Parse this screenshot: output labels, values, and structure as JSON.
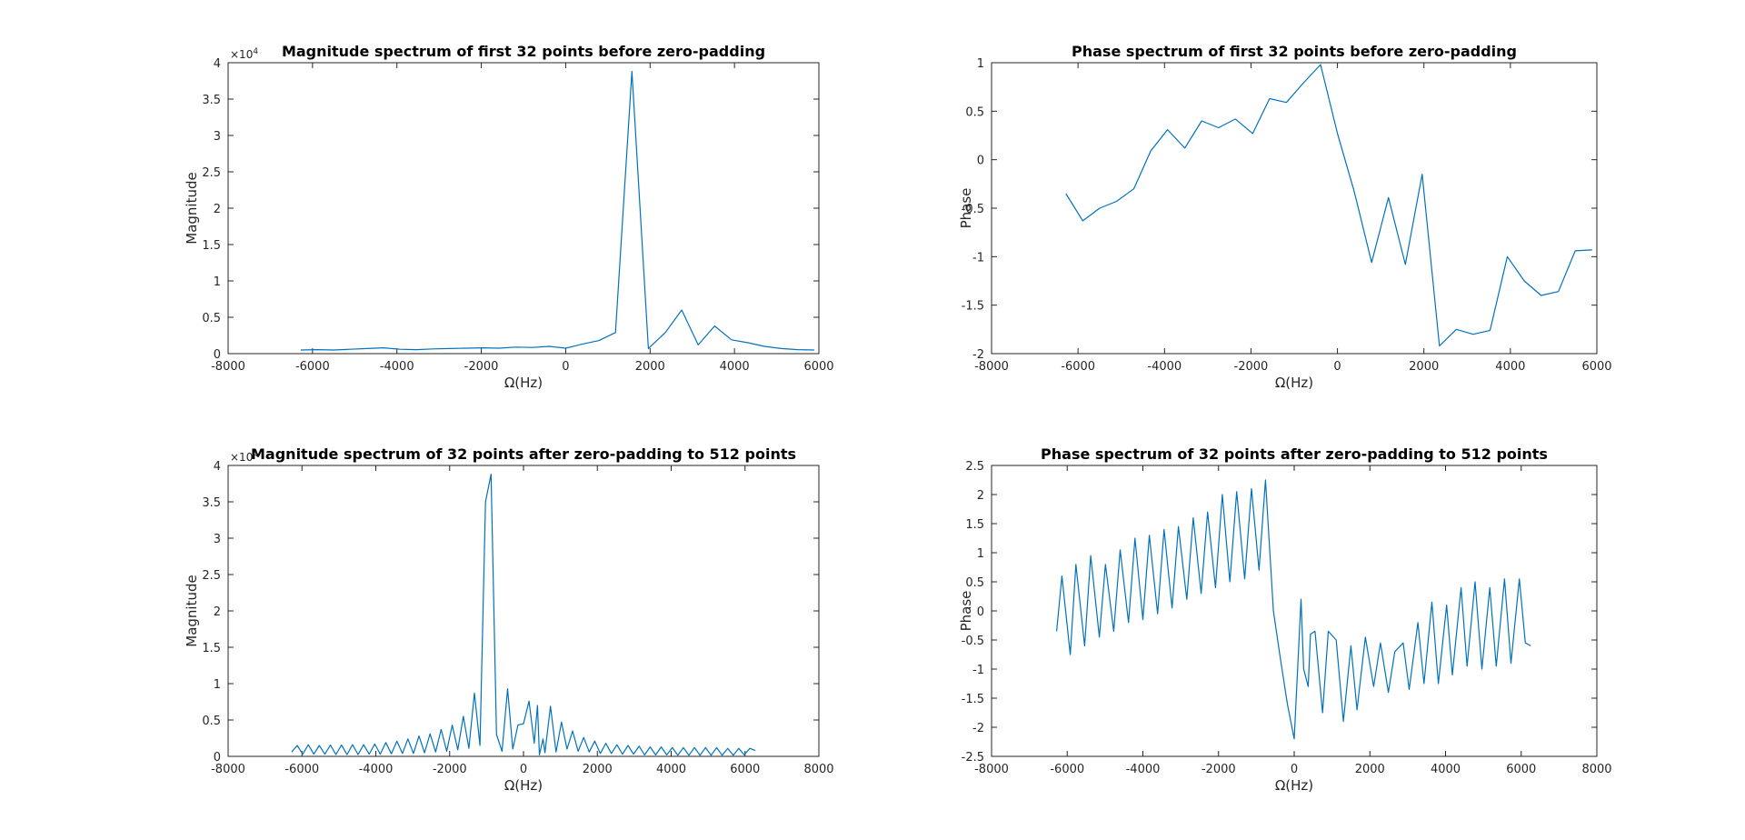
{
  "figure": {
    "background": "#ffffff",
    "line_color": "#0072BD",
    "axis_color": "#262626"
  },
  "chart_data": [
    {
      "type": "line",
      "title": "Magnitude spectrum of first 32 points before zero-padding",
      "xlabel": "Ω(Hz)",
      "ylabel": "Magnitude",
      "xlim": [
        -8000,
        6000
      ],
      "ylim": [
        0,
        40000
      ],
      "xticks": [
        -8000,
        -6000,
        -4000,
        -2000,
        0,
        2000,
        4000,
        6000
      ],
      "xtick_labels": [
        "-8000",
        "-6000",
        "-4000",
        "-2000",
        "0",
        "2000",
        "4000",
        "6000"
      ],
      "yticks": [
        0,
        5000,
        10000,
        15000,
        20000,
        25000,
        30000,
        35000,
        40000
      ],
      "ytick_labels": [
        "0",
        "0.5",
        "1",
        "1.5",
        "2",
        "2.5",
        "3",
        "3.5",
        "4"
      ],
      "y_multiplier": {
        "base": "×10",
        "exp": "4"
      },
      "grid": false,
      "series": [
        {
          "x": [
            -6280,
            -5890,
            -5500,
            -5110,
            -4710,
            -4320,
            -3930,
            -3530,
            -3140,
            -2750,
            -2360,
            -1960,
            -1570,
            -1180,
            -790,
            -390,
            0,
            390,
            790,
            1180,
            1570,
            1960,
            2360,
            2750,
            3140,
            3530,
            3930,
            4320,
            4710,
            5110,
            5500,
            5890
          ],
          "y": [
            500,
            550,
            500,
            600,
            700,
            800,
            600,
            550,
            650,
            700,
            750,
            800,
            750,
            900,
            850,
            1000,
            750,
            1300,
            1800,
            2900,
            38800,
            700,
            2900,
            6000,
            1200,
            3800,
            1900,
            1500,
            1000,
            700,
            550,
            500
          ]
        }
      ]
    },
    {
      "type": "line",
      "title": "Phase spectrum of first 32 points before zero-padding",
      "xlabel": "Ω(Hz)",
      "ylabel": "Phase",
      "xlim": [
        -8000,
        6000
      ],
      "ylim": [
        -2,
        1
      ],
      "xticks": [
        -8000,
        -6000,
        -4000,
        -2000,
        0,
        2000,
        4000,
        6000
      ],
      "xtick_labels": [
        "-8000",
        "-6000",
        "-4000",
        "-2000",
        "0",
        "2000",
        "4000",
        "6000"
      ],
      "yticks": [
        -2,
        -1.5,
        -1,
        -0.5,
        0,
        0.5,
        1
      ],
      "ytick_labels": [
        "-2",
        "-1.5",
        "-1",
        "-0.5",
        "0",
        "0.5",
        "1"
      ],
      "grid": false,
      "series": [
        {
          "x": [
            -6280,
            -5890,
            -5500,
            -5110,
            -4710,
            -4320,
            -3930,
            -3530,
            -3140,
            -2750,
            -2360,
            -1960,
            -1570,
            -1180,
            -790,
            -390,
            0,
            390,
            790,
            1180,
            1570,
            1960,
            2360,
            2750,
            3140,
            3530,
            3930,
            4320,
            4710,
            5110,
            5500,
            5890
          ],
          "y": [
            -0.35,
            -0.63,
            -0.5,
            -0.43,
            -0.3,
            0.09,
            0.31,
            0.12,
            0.4,
            0.33,
            0.42,
            0.27,
            0.63,
            0.59,
            0.79,
            0.98,
            0.27,
            -0.33,
            -1.06,
            -0.39,
            -1.08,
            -0.15,
            -1.92,
            -1.75,
            -1.8,
            -1.76,
            -1.0,
            -1.25,
            -1.4,
            -1.36,
            -0.94,
            -0.93
          ]
        }
      ]
    },
    {
      "type": "line",
      "title": "Magnitude spectrum of 32 points after zero-padding to 512 points",
      "xlabel": "Ω(Hz)",
      "ylabel": "Magnitude",
      "xlim": [
        -8000,
        8000
      ],
      "ylim": [
        0,
        40000
      ],
      "xticks": [
        -8000,
        -6000,
        -4000,
        -2000,
        0,
        2000,
        4000,
        6000,
        8000
      ],
      "xtick_labels": [
        "-8000",
        "-6000",
        "-4000",
        "-2000",
        "0",
        "2000",
        "4000",
        "6000",
        "8000"
      ],
      "yticks": [
        0,
        5000,
        10000,
        15000,
        20000,
        25000,
        30000,
        35000,
        40000
      ],
      "ytick_labels": [
        "0",
        "0.5",
        "1",
        "1.5",
        "2",
        "2.5",
        "3",
        "3.5",
        "4"
      ],
      "y_multiplier": {
        "base": "×10",
        "exp": "4"
      },
      "grid": false,
      "series": [
        {
          "x": [
            -6280,
            -6130,
            -5980,
            -5830,
            -5680,
            -5530,
            -5380,
            -5230,
            -5080,
            -4930,
            -4780,
            -4630,
            -4480,
            -4330,
            -4180,
            -4030,
            -3880,
            -3730,
            -3580,
            -3430,
            -3280,
            -3130,
            -2980,
            -2830,
            -2680,
            -2530,
            -2380,
            -2230,
            -2080,
            -1930,
            -1780,
            -1630,
            -1480,
            -1330,
            -1180,
            -1030,
            -880,
            -730,
            -580,
            -430,
            -290,
            -150,
            0,
            150,
            290,
            380,
            430,
            530,
            580,
            730,
            880,
            1030,
            1180,
            1330,
            1480,
            1630,
            1780,
            1930,
            2080,
            2230,
            2380,
            2530,
            2680,
            2830,
            2980,
            3130,
            3280,
            3430,
            3580,
            3730,
            3880,
            4030,
            4180,
            4330,
            4480,
            4630,
            4780,
            4930,
            5080,
            5230,
            5380,
            5530,
            5680,
            5830,
            5980,
            6130,
            6280
          ],
          "y": [
            600,
            1500,
            300,
            1600,
            300,
            1500,
            300,
            1550,
            250,
            1550,
            250,
            1600,
            250,
            1600,
            300,
            1700,
            300,
            1900,
            350,
            2100,
            400,
            2400,
            400,
            2800,
            500,
            3100,
            600,
            3700,
            700,
            4300,
            900,
            5500,
            1100,
            8700,
            1500,
            35000,
            38800,
            3000,
            700,
            9300,
            1000,
            4300,
            4500,
            7600,
            1800,
            7000,
            200,
            2400,
            500,
            6900,
            600,
            4700,
            1000,
            3500,
            700,
            2600,
            600,
            2100,
            400,
            1800,
            400,
            1600,
            300,
            1500,
            300,
            1400,
            200,
            1300,
            200,
            1300,
            200,
            1200,
            150,
            1200,
            150,
            1200,
            150,
            1200,
            150,
            1200,
            150,
            1100,
            150,
            1100,
            200,
            1100,
            800
          ]
        }
      ]
    },
    {
      "type": "line",
      "title": "Phase spectrum of 32 points after zero-padding to 512 points",
      "xlabel": "Ω(Hz)",
      "ylabel": "Phase",
      "xlim": [
        -8000,
        8000
      ],
      "ylim": [
        -2.5,
        2.5
      ],
      "xticks": [
        -8000,
        -6000,
        -4000,
        -2000,
        0,
        2000,
        4000,
        6000,
        8000
      ],
      "xtick_labels": [
        "-8000",
        "-6000",
        "-4000",
        "-2000",
        "0",
        "2000",
        "4000",
        "6000",
        "8000"
      ],
      "yticks": [
        -2.5,
        -2,
        -1.5,
        -1,
        -0.5,
        0,
        0.5,
        1,
        1.5,
        2,
        2.5
      ],
      "ytick_labels": [
        "-2.5",
        "-2",
        "-1.5",
        "-1",
        "-0.5",
        "0",
        "0.5",
        "1",
        "1.5",
        "2",
        "2.5"
      ],
      "grid": false,
      "series": [
        {
          "x": [
            -6280,
            -6140,
            -5920,
            -5770,
            -5540,
            -5380,
            -5150,
            -4990,
            -4770,
            -4600,
            -4380,
            -4210,
            -4000,
            -3830,
            -3610,
            -3440,
            -3230,
            -3060,
            -2840,
            -2670,
            -2460,
            -2290,
            -2080,
            -1900,
            -1700,
            -1520,
            -1310,
            -1130,
            -930,
            -760,
            -550,
            -370,
            -180,
            0,
            180,
            250,
            370,
            430,
            550,
            750,
            900,
            1110,
            1300,
            1500,
            1660,
            1880,
            2100,
            2280,
            2490,
            2660,
            2880,
            3040,
            3270,
            3430,
            3640,
            3810,
            4030,
            4180,
            4410,
            4570,
            4780,
            4960,
            5170,
            5340,
            5560,
            5730,
            5950,
            6110,
            6250
          ],
          "y": [
            -0.35,
            0.6,
            -0.75,
            0.8,
            -0.6,
            0.95,
            -0.45,
            0.8,
            -0.35,
            1.05,
            -0.2,
            1.25,
            -0.15,
            1.3,
            -0.05,
            1.4,
            0.05,
            1.45,
            0.2,
            1.6,
            0.3,
            1.7,
            0.4,
            2.0,
            0.5,
            2.05,
            0.55,
            2.1,
            0.7,
            2.25,
            0.0,
            -0.8,
            -1.6,
            -2.2,
            0.2,
            -1.0,
            -1.3,
            -0.4,
            -0.35,
            -1.75,
            -0.35,
            -0.5,
            -1.9,
            -0.6,
            -1.7,
            -0.45,
            -1.3,
            -0.55,
            -1.4,
            -0.7,
            -0.55,
            -1.35,
            -0.2,
            -1.25,
            0.15,
            -1.25,
            0.1,
            -1.1,
            0.4,
            -0.95,
            0.5,
            -1.0,
            0.4,
            -0.95,
            0.55,
            -0.9,
            0.55,
            -0.55,
            -0.6
          ]
        }
      ]
    }
  ]
}
